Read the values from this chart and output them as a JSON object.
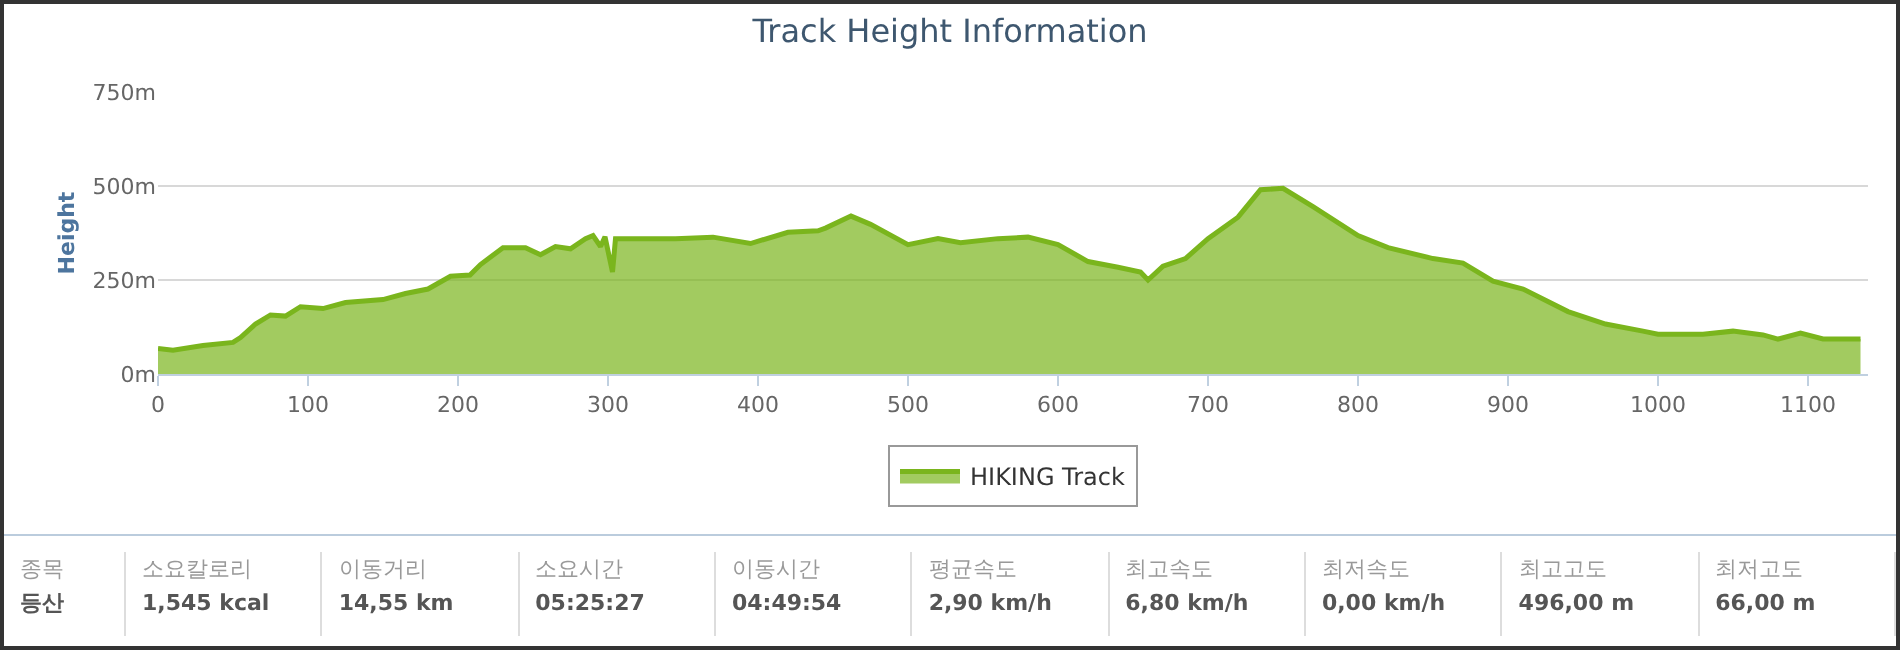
{
  "chart_data": {
    "type": "area",
    "title": "Track Height Information",
    "ylabel": "Height",
    "x": [
      0,
      10,
      30,
      50,
      55,
      65,
      75,
      85,
      95,
      110,
      125,
      150,
      165,
      180,
      195,
      208,
      215,
      230,
      245,
      255,
      265,
      275,
      285,
      290,
      295,
      298,
      303,
      305,
      320,
      345,
      370,
      395,
      420,
      440,
      445,
      462,
      475,
      500,
      520,
      535,
      560,
      580,
      600,
      620,
      640,
      655,
      660,
      670,
      685,
      700,
      720,
      735,
      750,
      770,
      800,
      820,
      850,
      870,
      890,
      910,
      940,
      965,
      990,
      1000,
      1030,
      1050,
      1070,
      1080,
      1095,
      1110,
      1135
    ],
    "series": [
      {
        "name": "HIKING Track",
        "color": "#7ab51d",
        "values": [
          68,
          63,
          76,
          84,
          97,
          133,
          157,
          154,
          179,
          174,
          190,
          198,
          214,
          226,
          260,
          263,
          291,
          336,
          336,
          317,
          339,
          333,
          360,
          368,
          339,
          365,
          271,
          360,
          360,
          360,
          364,
          347,
          377,
          381,
          388,
          420,
          398,
          344,
          360,
          349,
          360,
          364,
          344,
          299,
          284,
          271,
          250,
          287,
          307,
          360,
          417,
          490,
          494,
          445,
          368,
          336,
          307,
          295,
          247,
          226,
          166,
          133,
          114,
          106,
          106,
          114,
          104,
          93,
          109,
          93,
          93
        ]
      }
    ],
    "xlim": [
      0,
      1140
    ],
    "xticks": [
      0,
      100,
      200,
      300,
      400,
      500,
      600,
      700,
      800,
      900,
      1000,
      1100
    ],
    "ylim": [
      0,
      750
    ],
    "yticks": [
      {
        "value": 0,
        "label": "0m"
      },
      {
        "value": 250,
        "label": "250m"
      },
      {
        "value": 500,
        "label": "500m"
      },
      {
        "value": 750,
        "label": "750m"
      }
    ],
    "grid": "y",
    "legend": "bottom",
    "marker": "none",
    "annotations": [
      "종목",
      "등산",
      "소요칼로리",
      "1,545 kcal",
      "이동거리",
      "14,55 km",
      "소요시간",
      "05:25:27",
      "이동시간",
      "04:49:54",
      "평균속도",
      "2,90 km/h",
      "최고속도",
      "6,80 km/h",
      "최저속도",
      "0,00 km/h",
      "최고고도",
      "496,00 m",
      "최저고도",
      "66,00 m"
    ]
  }
}
